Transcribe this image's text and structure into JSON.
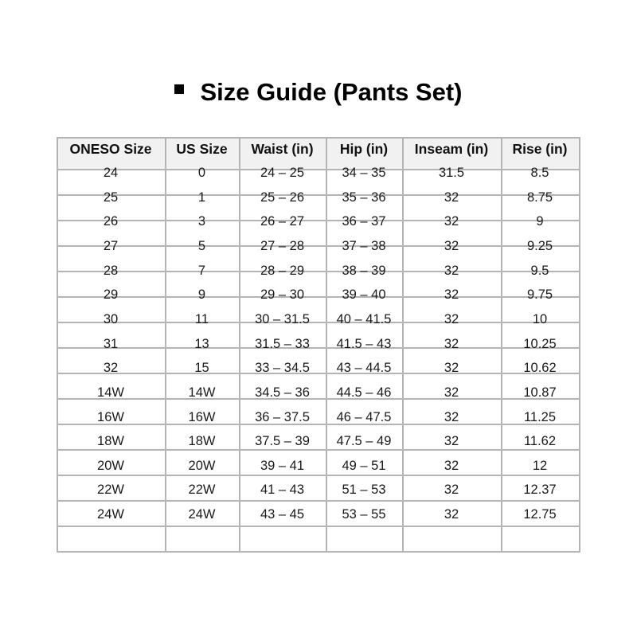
{
  "title": "Size Guide (Pants Set)",
  "title_icon": "black-square-bullet",
  "table": {
    "headers": [
      "ONESO Size",
      "US Size",
      "Waist (in)",
      "Hip (in)",
      "Inseam (in)",
      "Rise (in)"
    ],
    "rows": [
      [
        "24",
        "0",
        "24 – 25",
        "34 – 35",
        "31.5",
        "8.5"
      ],
      [
        "25",
        "1",
        "25 – 26",
        "35 – 36",
        "32",
        "8.75"
      ],
      [
        "26",
        "3",
        "26 – 27",
        "36 – 37",
        "32",
        "9"
      ],
      [
        "27",
        "5",
        "27 – 28",
        "37 – 38",
        "32",
        "9.25"
      ],
      [
        "28",
        "7",
        "28 – 29",
        "38 – 39",
        "32",
        "9.5"
      ],
      [
        "29",
        "9",
        "29 – 30",
        "39 – 40",
        "32",
        "9.75"
      ],
      [
        "30",
        "11",
        "30 – 31.5",
        "40 – 41.5",
        "32",
        "10"
      ],
      [
        "31",
        "13",
        "31.5 – 33",
        "41.5 – 43",
        "32",
        "10.25"
      ],
      [
        "32",
        "15",
        "33 – 34.5",
        "43 – 44.5",
        "32",
        "10.62"
      ],
      [
        "14W",
        "14W",
        "34.5 – 36",
        "44.5 – 46",
        "32",
        "10.87"
      ],
      [
        "16W",
        "16W",
        "36 – 37.5",
        "46 – 47.5",
        "32",
        "11.25"
      ],
      [
        "18W",
        "18W",
        "37.5 – 39",
        "47.5 – 49",
        "32",
        "11.62"
      ],
      [
        "20W",
        "20W",
        "39 – 41",
        "49 – 51",
        "32",
        "12"
      ],
      [
        "22W",
        "22W",
        "41 – 43",
        "51 – 53",
        "32",
        "12.37"
      ],
      [
        "24W",
        "24W",
        "43 – 45",
        "53 – 55",
        "32",
        "12.75"
      ],
      [
        "",
        "",
        "",
        "",
        "",
        ""
      ]
    ]
  },
  "colors": {
    "grid": "#b4b4b4",
    "header_bg": "#f1f1f1",
    "text": "#1a1a1a"
  }
}
